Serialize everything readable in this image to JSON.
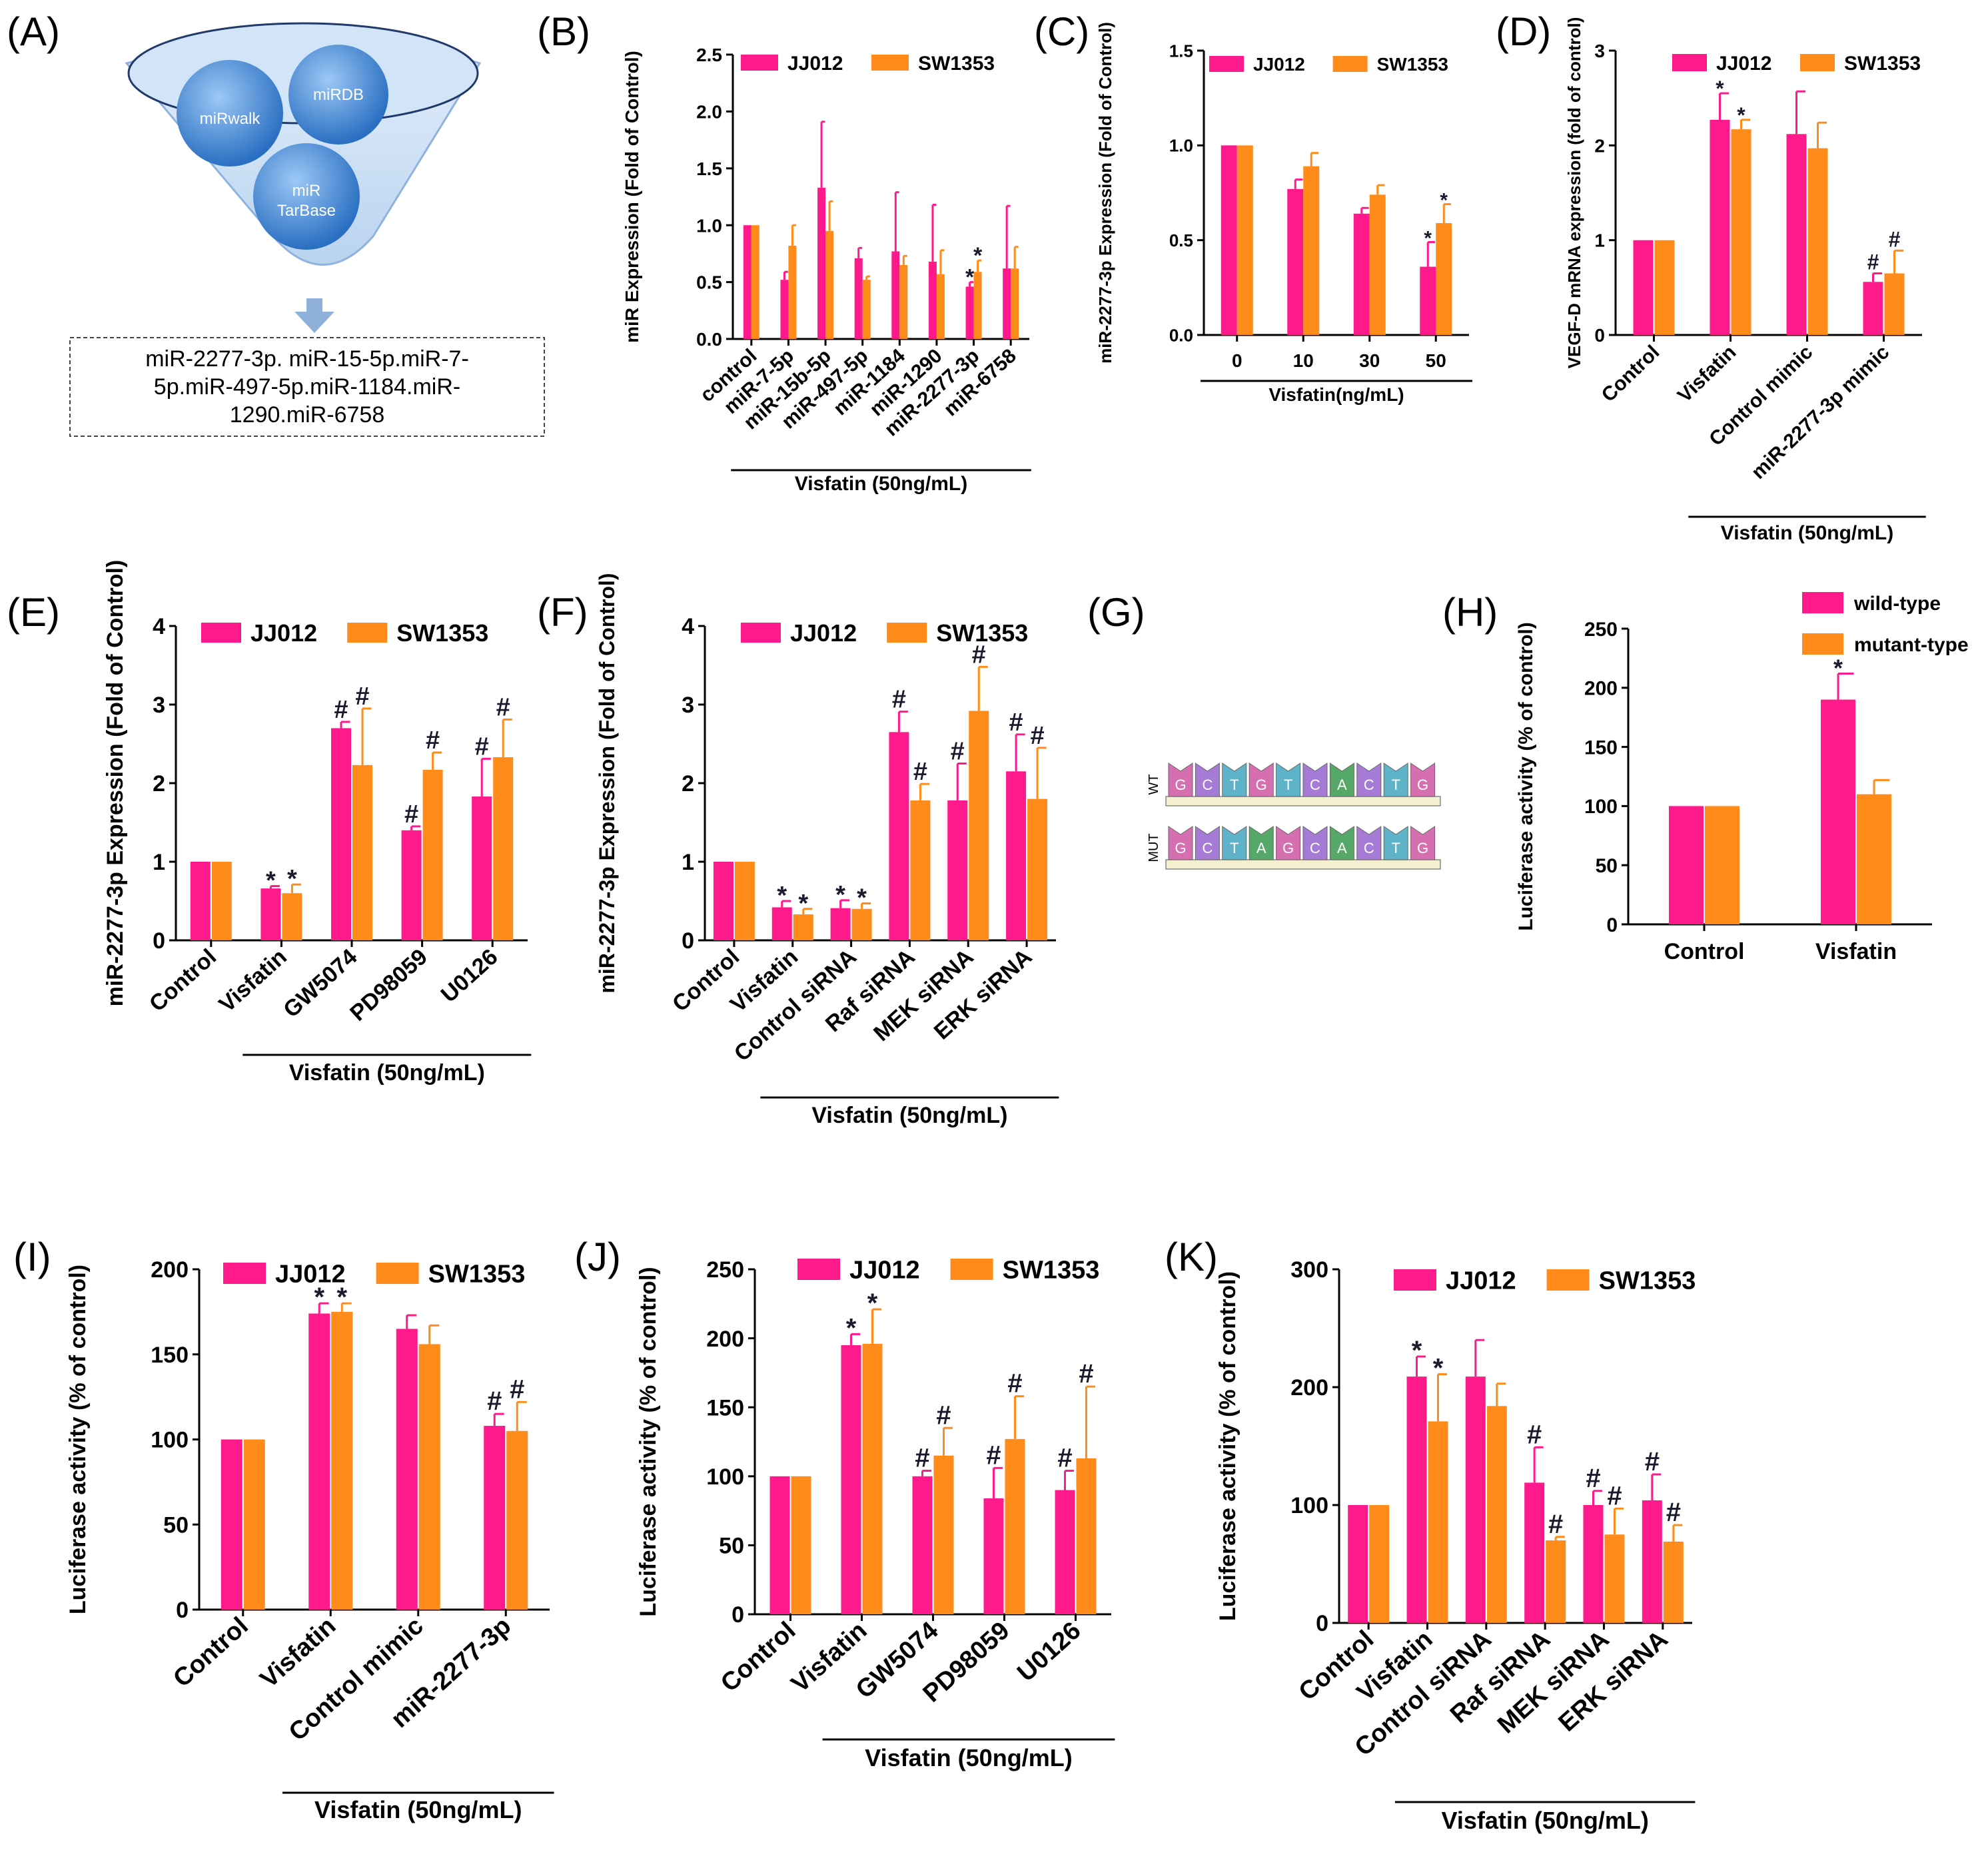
{
  "colors": {
    "pink": "#ff1a8c",
    "orange": "#ff8c1a",
    "axis": "#000000",
    "funnel_blue": "#4a8fe0",
    "funnel_light": "#c7ddf5"
  },
  "panel_a": {
    "label": "(A)",
    "databases": [
      "miRwalk",
      "miRDB",
      "miR TarBase"
    ],
    "result_lines": [
      "miR-2277-3p. miR-15-5p.miR-7-",
      "5p.miR-497-5p.miR-1184.miR-",
      "1290.miR-6758"
    ]
  },
  "panel_g": {
    "label": "(G)",
    "rows": [
      {
        "name": "WT",
        "bases": [
          "G",
          "C",
          "T",
          "G",
          "T",
          "C",
          "A",
          "C",
          "T",
          "G"
        ]
      },
      {
        "name": "MUT",
        "bases": [
          "G",
          "C",
          "T",
          "A",
          "G",
          "C",
          "A",
          "C",
          "T",
          "G"
        ]
      }
    ],
    "base_colors": {
      "A": "#55a868",
      "C": "#a57bd6",
      "G": "#d66fb0",
      "T": "#5fb3c9"
    }
  },
  "chart_data": [
    {
      "id": "B",
      "label": "(B)",
      "type": "bar",
      "ylabel": "miR Expression (Fold of Control)",
      "ylim": [
        0,
        2.5
      ],
      "yticks": [
        "0.0",
        "0.5",
        "1.0",
        "1.5",
        "2.0",
        "2.5"
      ],
      "categories": [
        "control",
        "miR-7-5p",
        "miR-15b-5p",
        "miR-497-5p",
        "miR-1184",
        "miR-1290",
        "miR-2277-3p",
        "miR-6758"
      ],
      "series": [
        {
          "name": "JJ012",
          "color": "#ff1a8c",
          "values": [
            1.0,
            0.52,
            1.33,
            0.71,
            0.77,
            0.68,
            0.46,
            0.62
          ],
          "errors": [
            0,
            0.07,
            0.58,
            0.09,
            0.52,
            0.5,
            0.04,
            0.55
          ],
          "marks": [
            "",
            "",
            "",
            "",
            "",
            "",
            "*",
            ""
          ]
        },
        {
          "name": "SW1353",
          "color": "#ff8c1a",
          "values": [
            1.0,
            0.82,
            0.95,
            0.52,
            0.65,
            0.57,
            0.59,
            0.62
          ],
          "errors": [
            0,
            0.18,
            0.26,
            0.03,
            0.08,
            0.21,
            0.1,
            0.19
          ],
          "marks": [
            "",
            "",
            "",
            "",
            "",
            "",
            "*",
            ""
          ]
        }
      ],
      "legend": "top",
      "group": {
        "label": "Visfatin (50ng/mL)",
        "from": 0,
        "to": 7
      }
    },
    {
      "id": "C",
      "label": "(C)",
      "type": "bar",
      "ylabel": "miR-2277-3p Expression (Fold of Control)",
      "ylim": [
        0,
        1.5
      ],
      "yticks": [
        "0.0",
        "0.5",
        "1.0",
        "1.5"
      ],
      "categories": [
        "0",
        "10",
        "30",
        "50"
      ],
      "series": [
        {
          "name": "JJ012",
          "color": "#ff1a8c",
          "values": [
            1.0,
            0.77,
            0.64,
            0.36
          ],
          "errors": [
            0,
            0.05,
            0.03,
            0.13
          ],
          "marks": [
            "",
            "",
            "",
            "*"
          ]
        },
        {
          "name": "SW1353",
          "color": "#ff8c1a",
          "values": [
            1.0,
            0.89,
            0.74,
            0.59
          ],
          "errors": [
            0,
            0.07,
            0.05,
            0.1
          ],
          "marks": [
            "",
            "",
            "",
            "*"
          ]
        }
      ],
      "legend": "top",
      "group": {
        "label": "Visfatin(ng/mL)",
        "from": 0,
        "to": 3
      }
    },
    {
      "id": "D",
      "label": "(D)",
      "type": "bar",
      "ylabel": "VEGF-D mRNA expression (fold of control)",
      "ylim": [
        0,
        3
      ],
      "yticks": [
        "0",
        "1",
        "2",
        "3"
      ],
      "categories": [
        "Control",
        "Visfatin",
        "Control mimic",
        "miR-2277-3p mimic"
      ],
      "series": [
        {
          "name": "JJ012",
          "color": "#ff1a8c",
          "values": [
            1.0,
            2.27,
            2.12,
            0.56
          ],
          "errors": [
            0,
            0.28,
            0.45,
            0.09
          ],
          "marks": [
            "",
            "*",
            "",
            "#"
          ]
        },
        {
          "name": "SW1353",
          "color": "#ff8c1a",
          "values": [
            1.0,
            2.17,
            1.97,
            0.65
          ],
          "errors": [
            0,
            0.1,
            0.27,
            0.24
          ],
          "marks": [
            "",
            "*",
            "",
            "#"
          ]
        }
      ],
      "legend": "top",
      "group": {
        "label": "Visfatin (50ng/mL)",
        "from": 1,
        "to": 3
      }
    },
    {
      "id": "E",
      "label": "(E)",
      "type": "bar",
      "ylabel": "miR-2277-3p Expression (Fold of Control)",
      "ylim": [
        0,
        4
      ],
      "yticks": [
        "0",
        "1",
        "2",
        "3",
        "4"
      ],
      "categories": [
        "Control",
        "Visfatin",
        "GW5074",
        "PD98059",
        "U0126"
      ],
      "series": [
        {
          "name": "JJ012",
          "color": "#ff1a8c",
          "values": [
            1.0,
            0.66,
            2.7,
            1.4,
            1.83
          ],
          "errors": [
            0,
            0.03,
            0.08,
            0.05,
            0.48
          ],
          "marks": [
            "",
            "*",
            "#",
            "#",
            "#"
          ]
        },
        {
          "name": "SW1353",
          "color": "#ff8c1a",
          "values": [
            1.0,
            0.6,
            2.23,
            2.17,
            2.33
          ],
          "errors": [
            0,
            0.11,
            0.72,
            0.22,
            0.48
          ],
          "marks": [
            "",
            "*",
            "#",
            "#",
            "#"
          ]
        }
      ],
      "legend": "top",
      "group": {
        "label": "Visfatin (50ng/mL)",
        "from": 1,
        "to": 4
      }
    },
    {
      "id": "F",
      "label": "(F)",
      "type": "bar",
      "ylabel": "miR-2277-3p Expression (Fold of Control)",
      "ylim": [
        0,
        4
      ],
      "yticks": [
        "0",
        "1",
        "2",
        "3",
        "4"
      ],
      "categories": [
        "Control",
        "Visfatin",
        "Control siRNA",
        "Raf siRNA",
        "MEK siRNA",
        "ERK siRNA"
      ],
      "series": [
        {
          "name": "JJ012",
          "color": "#ff1a8c",
          "values": [
            1.0,
            0.42,
            0.41,
            2.65,
            1.78,
            2.15
          ],
          "errors": [
            0,
            0.08,
            0.1,
            0.26,
            0.47,
            0.47
          ],
          "marks": [
            "",
            "*",
            "*",
            "#",
            "#",
            "#"
          ]
        },
        {
          "name": "SW1353",
          "color": "#ff8c1a",
          "values": [
            1.0,
            0.33,
            0.4,
            1.78,
            2.92,
            1.8
          ],
          "errors": [
            0,
            0.07,
            0.07,
            0.21,
            0.56,
            0.65
          ],
          "marks": [
            "",
            "*",
            "*",
            "#",
            "#",
            "#"
          ]
        }
      ],
      "legend": "top",
      "group": {
        "label": "Visfatin (50ng/mL)",
        "from": 1,
        "to": 5
      }
    },
    {
      "id": "H",
      "label": "(H)",
      "type": "bar",
      "ylabel": "Luciferase activity (% of control)",
      "ylim": [
        0,
        250
      ],
      "yticks": [
        "0",
        "50",
        "100",
        "150",
        "200",
        "250"
      ],
      "categories": [
        "Control",
        "Visfatin"
      ],
      "series": [
        {
          "name": "wild-type",
          "color": "#ff1a8c",
          "values": [
            100,
            190
          ],
          "errors": [
            0,
            22
          ],
          "marks": [
            "",
            "*"
          ]
        },
        {
          "name": "mutant-type",
          "color": "#ff8c1a",
          "values": [
            100,
            110
          ],
          "errors": [
            0,
            12
          ],
          "marks": [
            "",
            ""
          ]
        }
      ],
      "legend": "right-stacked"
    },
    {
      "id": "I",
      "label": "(I)",
      "type": "bar",
      "ylabel": "Luciferase activity (% of control)",
      "ylim": [
        0,
        200
      ],
      "yticks": [
        "0",
        "50",
        "100",
        "150",
        "200"
      ],
      "categories": [
        "Control",
        "Visfatin",
        "Control mimic",
        "miR-2277-3p"
      ],
      "series": [
        {
          "name": "JJ012",
          "color": "#ff1a8c",
          "values": [
            100,
            174,
            165,
            108
          ],
          "errors": [
            0,
            6,
            8,
            7
          ],
          "marks": [
            "",
            "*",
            "",
            "#"
          ]
        },
        {
          "name": "SW1353",
          "color": "#ff8c1a",
          "values": [
            100,
            175,
            156,
            105
          ],
          "errors": [
            0,
            5,
            11,
            17
          ],
          "marks": [
            "",
            "*",
            "",
            "#"
          ]
        }
      ],
      "legend": "top",
      "group": {
        "label": "Visfatin (50ng/mL)",
        "from": 1,
        "to": 3
      }
    },
    {
      "id": "J",
      "label": "(J)",
      "type": "bar",
      "ylabel": "Luciferase activity (% of control)",
      "ylim": [
        0,
        250
      ],
      "yticks": [
        "0",
        "50",
        "100",
        "150",
        "200",
        "250"
      ],
      "categories": [
        "Control",
        "Visfatin",
        "GW5074",
        "PD98059",
        "U0126"
      ],
      "series": [
        {
          "name": "JJ012",
          "color": "#ff1a8c",
          "values": [
            100,
            195,
            100,
            84,
            90
          ],
          "errors": [
            0,
            8,
            4,
            22,
            14
          ],
          "marks": [
            "",
            "*",
            "#",
            "#",
            "#"
          ]
        },
        {
          "name": "SW1353",
          "color": "#ff8c1a",
          "values": [
            100,
            196,
            115,
            127,
            113
          ],
          "errors": [
            0,
            25,
            20,
            31,
            52
          ],
          "marks": [
            "",
            "*",
            "#",
            "#",
            "#"
          ]
        }
      ],
      "legend": "top",
      "group": {
        "label": "Visfatin (50ng/mL)",
        "from": 1,
        "to": 4
      }
    },
    {
      "id": "K",
      "label": "(K)",
      "type": "bar",
      "ylabel": "Luciferase activity (% of control)",
      "ylim": [
        0,
        300
      ],
      "yticks": [
        "0",
        "100",
        "200",
        "300"
      ],
      "categories": [
        "Control",
        "Visfatin",
        "Control siRNA",
        "Raf siRNA",
        "MEK siRNA",
        "ERK siRNA"
      ],
      "series": [
        {
          "name": "JJ012",
          "color": "#ff1a8c",
          "values": [
            100,
            209,
            209,
            119,
            100,
            104
          ],
          "errors": [
            0,
            17,
            31,
            30,
            12,
            22
          ],
          "marks": [
            "",
            "*",
            "",
            "#",
            "#",
            "#"
          ]
        },
        {
          "name": "SW1353",
          "color": "#ff8c1a",
          "values": [
            100,
            171,
            184,
            70,
            75,
            69
          ],
          "errors": [
            0,
            40,
            19,
            3,
            22,
            14
          ],
          "marks": [
            "",
            "*",
            "",
            "#",
            "#",
            "#"
          ]
        }
      ],
      "legend": "top",
      "group": {
        "label": "Visfatin (50ng/mL)",
        "from": 1,
        "to": 5
      }
    }
  ]
}
